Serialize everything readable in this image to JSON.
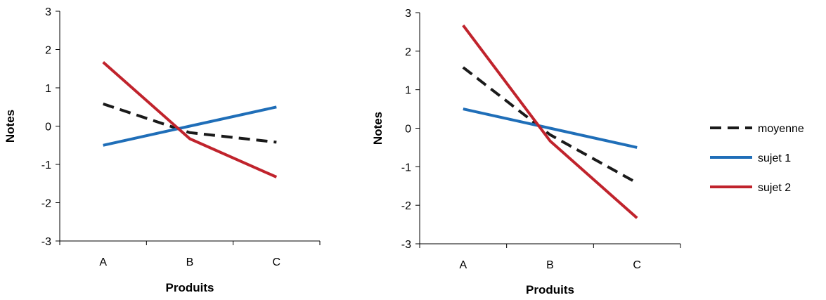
{
  "chart_data": [
    {
      "type": "line",
      "categories": [
        "A",
        "B",
        "C"
      ],
      "xlabel": "Produits",
      "ylabel": "Notes",
      "ylim": [
        -3,
        3
      ],
      "yticks": [
        "3",
        "2",
        "1",
        "0",
        "-1",
        "-2",
        "-3"
      ],
      "grid": false,
      "series": [
        {
          "key": "moyenne",
          "values": [
            0.58,
            -0.17,
            -0.42
          ],
          "color": "#1a1a1a",
          "dash": true
        },
        {
          "key": "sujet1",
          "values": [
            -0.5,
            0.0,
            0.5
          ],
          "color": "#1f6eb8",
          "dash": false
        },
        {
          "key": "sujet2",
          "values": [
            1.67,
            -0.33,
            -1.33
          ],
          "color": "#c0232c",
          "dash": false
        }
      ]
    },
    {
      "type": "line",
      "categories": [
        "A",
        "B",
        "C"
      ],
      "xlabel": "Produits",
      "ylabel": "Notes",
      "ylim": [
        -3,
        3
      ],
      "yticks": [
        "3",
        "2",
        "1",
        "0",
        "-1",
        "-2",
        "-3"
      ],
      "grid": false,
      "legend_position": "right",
      "series": [
        {
          "name": "moyenne",
          "values": [
            1.58,
            -0.17,
            -1.42
          ],
          "color": "#1a1a1a",
          "dash": true
        },
        {
          "name": "sujet 1",
          "values": [
            0.5,
            0.0,
            -0.5
          ],
          "color": "#1f6eb8",
          "dash": false
        },
        {
          "name": "sujet 2",
          "values": [
            2.67,
            -0.33,
            -2.33
          ],
          "color": "#c0232c",
          "dash": false
        }
      ]
    }
  ]
}
